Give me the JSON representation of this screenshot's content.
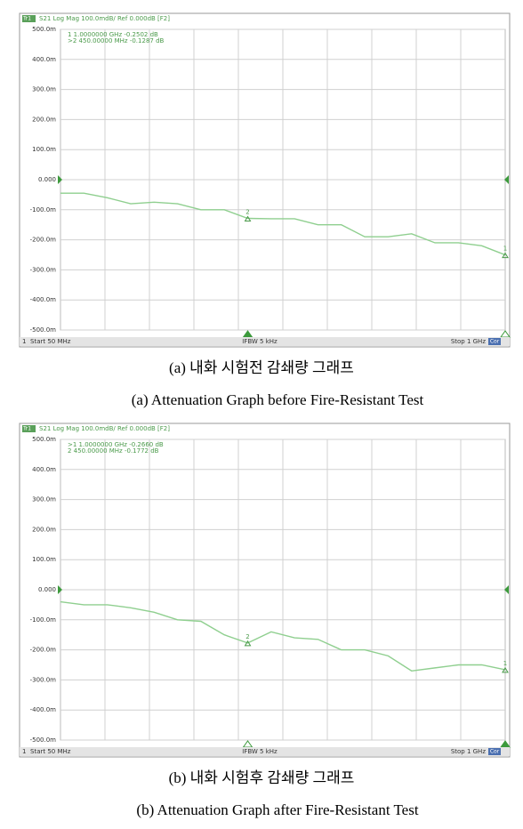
{
  "chart_data": [
    {
      "type": "line",
      "tag": "Tr1",
      "header": "S21 Log Mag 100.0mdB/ Ref 0.000dB [F2]",
      "marker_readouts": [
        "1   1.0000000 GHz  -0.2502 dB",
        ">2   450.00000 MHz  -0.1287 dB"
      ],
      "x": [
        50,
        100,
        150,
        200,
        250,
        300,
        350,
        400,
        450,
        500,
        550,
        600,
        650,
        700,
        750,
        800,
        850,
        900,
        950,
        1000
      ],
      "series": [
        {
          "name": "S21",
          "color": "#8fcf8f",
          "values": [
            -0.045,
            -0.045,
            -0.06,
            -0.08,
            -0.075,
            -0.08,
            -0.1,
            -0.1,
            -0.1287,
            -0.13,
            -0.13,
            -0.15,
            -0.15,
            -0.19,
            -0.19,
            -0.18,
            -0.21,
            -0.21,
            -0.22,
            -0.2502
          ]
        }
      ],
      "markers": [
        {
          "name": "1",
          "x": 1000,
          "y": -0.2502,
          "active": false
        },
        {
          "name": "2",
          "x": 450,
          "y": -0.1287,
          "active": true
        }
      ],
      "xlim": [
        50,
        1000
      ],
      "ylim": [
        -0.5,
        0.5
      ],
      "yticks": [
        {
          "value": 0.5,
          "label": "500.0m"
        },
        {
          "value": 0.4,
          "label": "400.0m"
        },
        {
          "value": 0.3,
          "label": "300.0m"
        },
        {
          "value": 0.2,
          "label": "200.0m"
        },
        {
          "value": 0.1,
          "label": "100.0m"
        },
        {
          "value": 0,
          "label": "0.000"
        },
        {
          "value": -0.1,
          "label": "-100.0m"
        },
        {
          "value": -0.2,
          "label": "-200.0m"
        },
        {
          "value": -0.3,
          "label": "-300.0m"
        },
        {
          "value": -0.4,
          "label": "-400.0m"
        },
        {
          "value": -0.5,
          "label": "-500.0m"
        }
      ],
      "grid": true,
      "footer": {
        "channel": "1",
        "start": "Start 50 MHz",
        "ifbw": "IFBW 5 kHz",
        "stop": "Stop 1 GHz",
        "correction": "Cor"
      },
      "captions": [
        "(a) 내화 시험전 감쇄량 그래프",
        "(a) Attenuation Graph before Fire-Resistant Test"
      ]
    },
    {
      "type": "line",
      "tag": "Tr1",
      "header": "S21 Log Mag 100.0mdB/ Ref 0.000dB [F2]",
      "marker_readouts": [
        ">1   1.0000000 GHz  -0.2660 dB",
        "2   450.00000 MHz  -0.1772 dB"
      ],
      "x": [
        50,
        100,
        150,
        200,
        250,
        300,
        350,
        400,
        450,
        500,
        550,
        600,
        650,
        700,
        750,
        800,
        850,
        900,
        950,
        1000
      ],
      "series": [
        {
          "name": "S21",
          "color": "#8fcf8f",
          "values": [
            -0.04,
            -0.05,
            -0.05,
            -0.06,
            -0.075,
            -0.1,
            -0.105,
            -0.15,
            -0.1772,
            -0.14,
            -0.16,
            -0.165,
            -0.2,
            -0.2,
            -0.22,
            -0.27,
            -0.26,
            -0.25,
            -0.25,
            -0.266
          ]
        }
      ],
      "markers": [
        {
          "name": "1",
          "x": 1000,
          "y": -0.266,
          "active": true
        },
        {
          "name": "2",
          "x": 450,
          "y": -0.1772,
          "active": false
        }
      ],
      "xlim": [
        50,
        1000
      ],
      "ylim": [
        -0.5,
        0.5
      ],
      "yticks": [
        {
          "value": 0.5,
          "label": "500.0m"
        },
        {
          "value": 0.4,
          "label": "400.0m"
        },
        {
          "value": 0.3,
          "label": "300.0m"
        },
        {
          "value": 0.2,
          "label": "200.0m"
        },
        {
          "value": 0.1,
          "label": "100.0m"
        },
        {
          "value": 0,
          "label": "0.000"
        },
        {
          "value": -0.1,
          "label": "-100.0m"
        },
        {
          "value": -0.2,
          "label": "-200.0m"
        },
        {
          "value": -0.3,
          "label": "-300.0m"
        },
        {
          "value": -0.4,
          "label": "-400.0m"
        },
        {
          "value": -0.5,
          "label": "-500.0m"
        }
      ],
      "grid": true,
      "footer": {
        "channel": "1",
        "start": "Start 50 MHz",
        "ifbw": "IFBW 5 kHz",
        "stop": "Stop 1 GHz",
        "correction": "Cor"
      },
      "captions": [
        "(b) 내화 시험후 감쇄량 그래프",
        "(b) Attenuation Graph after Fire-Resistant Test"
      ]
    }
  ]
}
